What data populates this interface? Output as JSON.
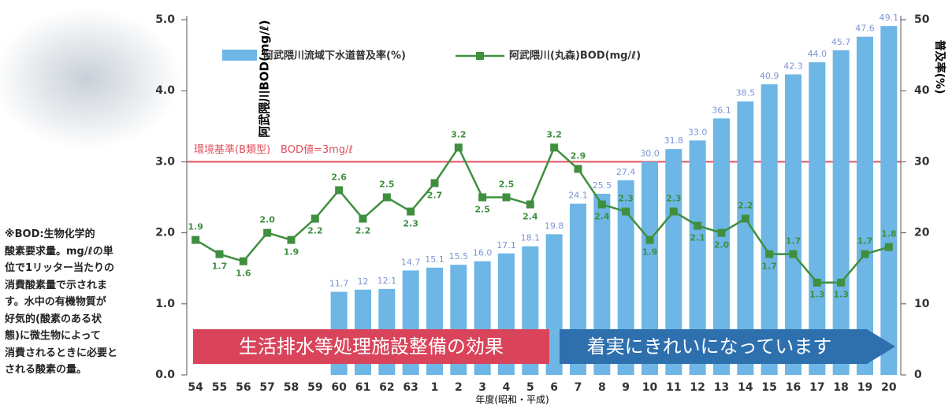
{
  "chart_data": {
    "type": "bar",
    "categories": [
      "54",
      "55",
      "56",
      "57",
      "58",
      "59",
      "60",
      "61",
      "62",
      "63",
      "1",
      "2",
      "3",
      "4",
      "5",
      "6",
      "7",
      "8",
      "9",
      "10",
      "11",
      "12",
      "13",
      "14",
      "15",
      "16",
      "17",
      "18",
      "19",
      "20"
    ],
    "series": [
      {
        "name": "阿武隈川流域下水道普及率(%)",
        "type": "bar",
        "axis": "y2",
        "color": "#6db6e6",
        "values": [
          null,
          null,
          null,
          null,
          null,
          null,
          11.7,
          12,
          12.1,
          14.7,
          15.1,
          15.5,
          16.0,
          17.1,
          18.1,
          19.8,
          24.1,
          25.5,
          27.4,
          30.0,
          31.8,
          33.0,
          36.1,
          38.5,
          40.9,
          42.3,
          44.0,
          45.7,
          47.6,
          49.1
        ],
        "value_labels": [
          null,
          null,
          null,
          null,
          null,
          null,
          "11.7",
          "12",
          "12.1",
          "14.7",
          "15.1",
          "15.5",
          "16.0",
          "17.1",
          "18.1",
          "19.8",
          "24.1",
          "25.5",
          "27.4",
          "30.0",
          "31.8",
          "33.0",
          "36.1",
          "38.5",
          "40.9",
          "42.3",
          "44.0",
          "45.7",
          "47.6",
          "49.1"
        ]
      },
      {
        "name": "阿武隈川(丸森)BOD(mg/ℓ)",
        "type": "line",
        "color": "#3f8f3f",
        "values": [
          1.9,
          1.7,
          1.6,
          2.0,
          1.9,
          2.2,
          2.6,
          2.2,
          2.5,
          2.3,
          2.7,
          3.2,
          2.5,
          2.5,
          2.4,
          3.2,
          2.9,
          2.4,
          2.3,
          1.9,
          2.3,
          2.1,
          2.0,
          2.2,
          1.7,
          1.7,
          1.3,
          1.3,
          1.7,
          1.8
        ],
        "value_labels": [
          "1.9",
          "1.7",
          "1.6",
          "2.0",
          "1.9",
          "2.2",
          "2.6",
          "2.2",
          "2.5",
          "2.3",
          "2.7",
          "3.2",
          "2.5",
          "2.5",
          "2.4",
          "3.2",
          "2.9",
          "2.4",
          "2.3",
          "1.9",
          "2.3",
          "2.1",
          "2.0",
          "2.2",
          "1.7",
          "1.7",
          "1.3",
          "1.3",
          "1.7",
          "1.8"
        ]
      }
    ],
    "ylabel": "阿武隈川BOD(mg/ℓ)",
    "y2label": "普及率(%)",
    "xlabel": "年度(昭和・平成)",
    "ylim": [
      0,
      5
    ],
    "yticks": [
      {
        "value": 0,
        "label": "0.0"
      },
      {
        "value": 1,
        "label": "1.0"
      },
      {
        "value": 2,
        "label": "2.0"
      },
      {
        "value": 3,
        "label": "3.0"
      },
      {
        "value": 4,
        "label": "4.0"
      },
      {
        "value": 5,
        "label": "5.0"
      }
    ],
    "y2lim": [
      0,
      50
    ],
    "y2ticks": [
      0,
      10,
      20,
      30,
      40,
      50
    ],
    "reference_line": {
      "value": 3,
      "label": "環境基準(B類型)　BOD値=3mg/ℓ",
      "color": "#e0505e"
    },
    "banners": [
      "生活排水等処理施設整備の効果",
      "着実にきれいになっています"
    ]
  },
  "note": [
    "※BOD:生物化学的",
    "酸素要求量。mg/ℓの単",
    "位で1リッター当たりの",
    "消費酸素量で示されま",
    "す。水中の有機物質が",
    "好気的(酸素のある状",
    "態)に微生物によって",
    "消費されるときに必要と",
    "される酸素の量。"
  ]
}
